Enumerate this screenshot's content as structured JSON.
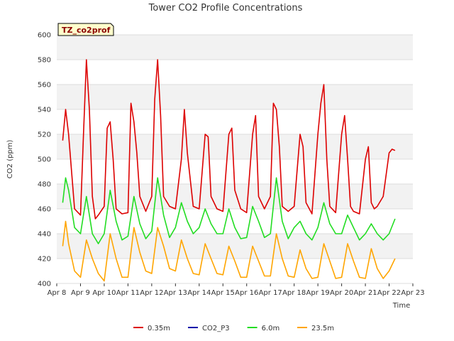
{
  "chart_data": {
    "type": "line",
    "title": "Tower CO2 Profile Concentrations",
    "xlabel": "Time",
    "ylabel": "CO2 (ppm)",
    "site_tag": "TZ_co2prof",
    "ylim": [
      400,
      600
    ],
    "yticks": [
      400,
      420,
      440,
      460,
      480,
      500,
      520,
      540,
      560,
      580,
      600
    ],
    "xlim": [
      "2000-04-08",
      "2000-04-23"
    ],
    "xticks": [
      "Apr 8",
      "Apr 9",
      "Apr 10",
      "Apr 11",
      "Apr 12",
      "Apr 13",
      "Apr 14",
      "Apr 15",
      "Apr 16",
      "Apr 17",
      "Apr 18",
      "Apr 19",
      "Apr 20",
      "Apr 21",
      "Apr 22",
      "Apr 23"
    ],
    "grid": true,
    "legend_position": "bottom",
    "series": [
      {
        "name": "0.35m",
        "color": "#dd0000",
        "x": [
          "2000-04-08 06:00",
          "2000-04-08 09:00",
          "2000-04-08 12:00",
          "2000-04-08 18:00",
          "2000-04-09 00:00",
          "2000-04-09 03:00",
          "2000-04-09 06:00",
          "2000-04-09 09:00",
          "2000-04-09 12:00",
          "2000-04-09 15:00",
          "2000-04-09 18:00",
          "2000-04-10 00:00",
          "2000-04-10 03:00",
          "2000-04-10 06:00",
          "2000-04-10 09:00",
          "2000-04-10 12:00",
          "2000-04-10 18:00",
          "2000-04-11 00:00",
          "2000-04-11 03:00",
          "2000-04-11 06:00",
          "2000-04-11 09:00",
          "2000-04-11 12:00",
          "2000-04-11 18:00",
          "2000-04-12 00:00",
          "2000-04-12 03:00",
          "2000-04-12 06:00",
          "2000-04-12 09:00",
          "2000-04-12 12:00",
          "2000-04-12 18:00",
          "2000-04-13 00:00",
          "2000-04-13 06:00",
          "2000-04-13 09:00",
          "2000-04-13 12:00",
          "2000-04-13 18:00",
          "2000-04-14 00:00",
          "2000-04-14 06:00",
          "2000-04-14 09:00",
          "2000-04-14 12:00",
          "2000-04-14 18:00",
          "2000-04-15 00:00",
          "2000-04-15 06:00",
          "2000-04-15 09:00",
          "2000-04-15 12:00",
          "2000-04-15 18:00",
          "2000-04-16 00:00",
          "2000-04-16 06:00",
          "2000-04-16 09:00",
          "2000-04-16 12:00",
          "2000-04-16 18:00",
          "2000-04-17 00:00",
          "2000-04-17 03:00",
          "2000-04-17 06:00",
          "2000-04-17 09:00",
          "2000-04-17 12:00",
          "2000-04-17 18:00",
          "2000-04-18 00:00",
          "2000-04-18 06:00",
          "2000-04-18 09:00",
          "2000-04-18 12:00",
          "2000-04-18 18:00",
          "2000-04-19 00:00",
          "2000-04-19 03:00",
          "2000-04-19 06:00",
          "2000-04-19 09:00",
          "2000-04-19 12:00",
          "2000-04-19 18:00",
          "2000-04-20 00:00",
          "2000-04-20 03:00",
          "2000-04-20 06:00",
          "2000-04-20 09:00",
          "2000-04-20 12:00",
          "2000-04-20 18:00",
          "2000-04-21 00:00",
          "2000-04-21 03:00",
          "2000-04-21 06:00",
          "2000-04-21 09:00",
          "2000-04-21 12:00",
          "2000-04-21 18:00",
          "2000-04-22 00:00",
          "2000-04-22 03:00",
          "2000-04-22 06:00"
        ],
        "values": [
          515,
          540,
          520,
          460,
          455,
          520,
          580,
          540,
          470,
          452,
          455,
          462,
          525,
          530,
          500,
          460,
          456,
          457,
          545,
          530,
          505,
          470,
          458,
          470,
          548,
          580,
          535,
          470,
          462,
          460,
          500,
          540,
          505,
          462,
          460,
          520,
          518,
          470,
          460,
          458,
          520,
          525,
          475,
          460,
          457,
          520,
          535,
          470,
          460,
          470,
          545,
          540,
          510,
          462,
          458,
          462,
          520,
          510,
          465,
          456,
          520,
          545,
          560,
          500,
          462,
          457,
          520,
          535,
          500,
          462,
          458,
          456,
          500,
          510,
          465,
          460,
          462,
          470,
          505,
          508,
          507
        ]
      },
      {
        "name": "CO2_P3",
        "color": "#0000aa",
        "x": [],
        "values": []
      },
      {
        "name": "6.0m",
        "color": "#22dd22",
        "x": [
          "2000-04-08 06:00",
          "2000-04-08 09:00",
          "2000-04-08 12:00",
          "2000-04-08 18:00",
          "2000-04-09 00:00",
          "2000-04-09 06:00",
          "2000-04-09 12:00",
          "2000-04-09 18:00",
          "2000-04-10 00:00",
          "2000-04-10 06:00",
          "2000-04-10 12:00",
          "2000-04-10 18:00",
          "2000-04-11 00:00",
          "2000-04-11 06:00",
          "2000-04-11 12:00",
          "2000-04-11 18:00",
          "2000-04-12 00:00",
          "2000-04-12 06:00",
          "2000-04-12 12:00",
          "2000-04-12 18:00",
          "2000-04-13 00:00",
          "2000-04-13 06:00",
          "2000-04-13 12:00",
          "2000-04-13 18:00",
          "2000-04-14 00:00",
          "2000-04-14 06:00",
          "2000-04-14 12:00",
          "2000-04-14 18:00",
          "2000-04-15 00:00",
          "2000-04-15 06:00",
          "2000-04-15 12:00",
          "2000-04-15 18:00",
          "2000-04-16 00:00",
          "2000-04-16 06:00",
          "2000-04-16 12:00",
          "2000-04-16 18:00",
          "2000-04-17 00:00",
          "2000-04-17 06:00",
          "2000-04-17 12:00",
          "2000-04-17 18:00",
          "2000-04-18 00:00",
          "2000-04-18 06:00",
          "2000-04-18 12:00",
          "2000-04-18 18:00",
          "2000-04-19 00:00",
          "2000-04-19 06:00",
          "2000-04-19 12:00",
          "2000-04-19 18:00",
          "2000-04-20 00:00",
          "2000-04-20 06:00",
          "2000-04-20 12:00",
          "2000-04-20 18:00",
          "2000-04-21 00:00",
          "2000-04-21 06:00",
          "2000-04-21 12:00",
          "2000-04-21 18:00",
          "2000-04-22 00:00",
          "2000-04-22 06:00"
        ],
        "values": [
          465,
          485,
          475,
          445,
          440,
          470,
          440,
          432,
          440,
          475,
          450,
          435,
          438,
          470,
          448,
          436,
          442,
          485,
          455,
          437,
          445,
          465,
          450,
          440,
          445,
          460,
          448,
          440,
          440,
          460,
          445,
          436,
          437,
          462,
          450,
          437,
          440,
          485,
          450,
          436,
          445,
          450,
          440,
          435,
          445,
          465,
          448,
          440,
          440,
          455,
          445,
          435,
          440,
          448,
          440,
          435,
          440,
          452
        ]
      },
      {
        "name": "23.5m",
        "color": "#ffa500",
        "x": [
          "2000-04-08 06:00",
          "2000-04-08 09:00",
          "2000-04-08 12:00",
          "2000-04-08 18:00",
          "2000-04-09 00:00",
          "2000-04-09 06:00",
          "2000-04-09 12:00",
          "2000-04-09 18:00",
          "2000-04-10 00:00",
          "2000-04-10 06:00",
          "2000-04-10 12:00",
          "2000-04-10 18:00",
          "2000-04-11 00:00",
          "2000-04-11 06:00",
          "2000-04-11 12:00",
          "2000-04-11 18:00",
          "2000-04-12 00:00",
          "2000-04-12 06:00",
          "2000-04-12 12:00",
          "2000-04-12 18:00",
          "2000-04-13 00:00",
          "2000-04-13 06:00",
          "2000-04-13 12:00",
          "2000-04-13 18:00",
          "2000-04-14 00:00",
          "2000-04-14 06:00",
          "2000-04-14 12:00",
          "2000-04-14 18:00",
          "2000-04-15 00:00",
          "2000-04-15 06:00",
          "2000-04-15 12:00",
          "2000-04-15 18:00",
          "2000-04-16 00:00",
          "2000-04-16 06:00",
          "2000-04-16 12:00",
          "2000-04-16 18:00",
          "2000-04-17 00:00",
          "2000-04-17 06:00",
          "2000-04-17 12:00",
          "2000-04-17 18:00",
          "2000-04-18 00:00",
          "2000-04-18 06:00",
          "2000-04-18 12:00",
          "2000-04-18 18:00",
          "2000-04-19 00:00",
          "2000-04-19 06:00",
          "2000-04-19 12:00",
          "2000-04-19 18:00",
          "2000-04-20 00:00",
          "2000-04-20 06:00",
          "2000-04-20 12:00",
          "2000-04-20 18:00",
          "2000-04-21 00:00",
          "2000-04-21 06:00",
          "2000-04-21 12:00",
          "2000-04-21 18:00",
          "2000-04-22 00:00",
          "2000-04-22 06:00"
        ],
        "values": [
          430,
          450,
          432,
          410,
          405,
          435,
          420,
          408,
          402,
          440,
          420,
          405,
          405,
          445,
          425,
          410,
          408,
          445,
          430,
          412,
          410,
          435,
          420,
          408,
          407,
          432,
          420,
          408,
          407,
          430,
          418,
          405,
          405,
          430,
          418,
          406,
          406,
          440,
          420,
          406,
          405,
          427,
          412,
          404,
          405,
          432,
          418,
          404,
          405,
          432,
          418,
          405,
          404,
          428,
          412,
          404,
          410,
          420
        ]
      }
    ]
  }
}
